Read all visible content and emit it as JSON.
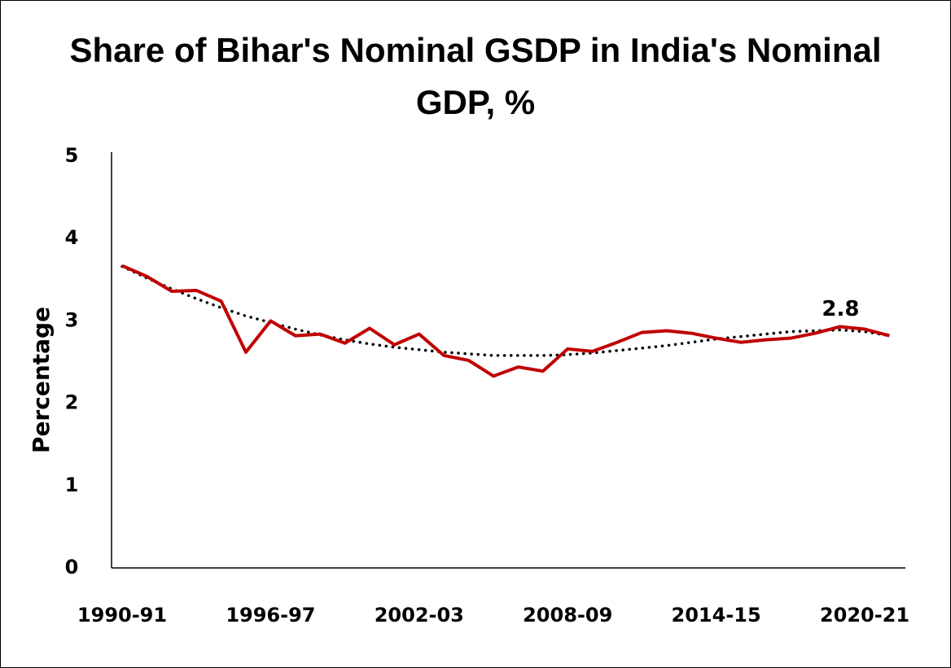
{
  "chart_data": {
    "type": "line",
    "title": "Share of Bihar's Nominal GSDP in India's Nominal GDP, %",
    "y_label": "Percentage",
    "categories": [
      "1990-91",
      null,
      null,
      null,
      null,
      null,
      "1996-97",
      null,
      null,
      null,
      null,
      null,
      "2002-03",
      null,
      null,
      null,
      null,
      null,
      "2008-09",
      null,
      null,
      null,
      null,
      null,
      "2014-15",
      null,
      null,
      null,
      null,
      null,
      "2020-21",
      null
    ],
    "series": [
      {
        "color": "#c00000",
        "values": [
          3.67,
          3.54,
          3.36,
          3.37,
          3.24,
          2.62,
          3.0,
          2.82,
          2.84,
          2.73,
          2.91,
          2.71,
          2.84,
          2.58,
          2.52,
          2.33,
          2.44,
          2.39,
          2.66,
          2.63,
          2.74,
          2.86,
          2.88,
          2.85,
          2.79,
          2.74,
          2.77,
          2.79,
          2.85,
          2.93,
          2.9,
          2.82
        ],
        "value_labels": [
          null,
          null,
          null,
          null,
          null,
          null,
          null,
          null,
          null,
          null,
          null,
          null,
          null,
          null,
          null,
          null,
          null,
          null,
          null,
          null,
          null,
          null,
          null,
          null,
          null,
          null,
          null,
          null,
          null,
          null,
          null,
          "2.8"
        ]
      }
    ],
    "trend": {
      "color": "#000000",
      "style": "dotted",
      "values": [
        3.66,
        3.52,
        3.39,
        3.27,
        3.16,
        3.06,
        2.98,
        2.9,
        2.83,
        2.77,
        2.72,
        2.68,
        2.65,
        2.62,
        2.6,
        2.58,
        2.58,
        2.58,
        2.59,
        2.61,
        2.64,
        2.67,
        2.7,
        2.74,
        2.78,
        2.81,
        2.84,
        2.87,
        2.88,
        2.89,
        2.87,
        2.82
      ]
    },
    "ylim": [
      0,
      5
    ],
    "yticks": [
      0,
      1,
      2,
      3,
      4,
      5
    ],
    "grid": false
  }
}
